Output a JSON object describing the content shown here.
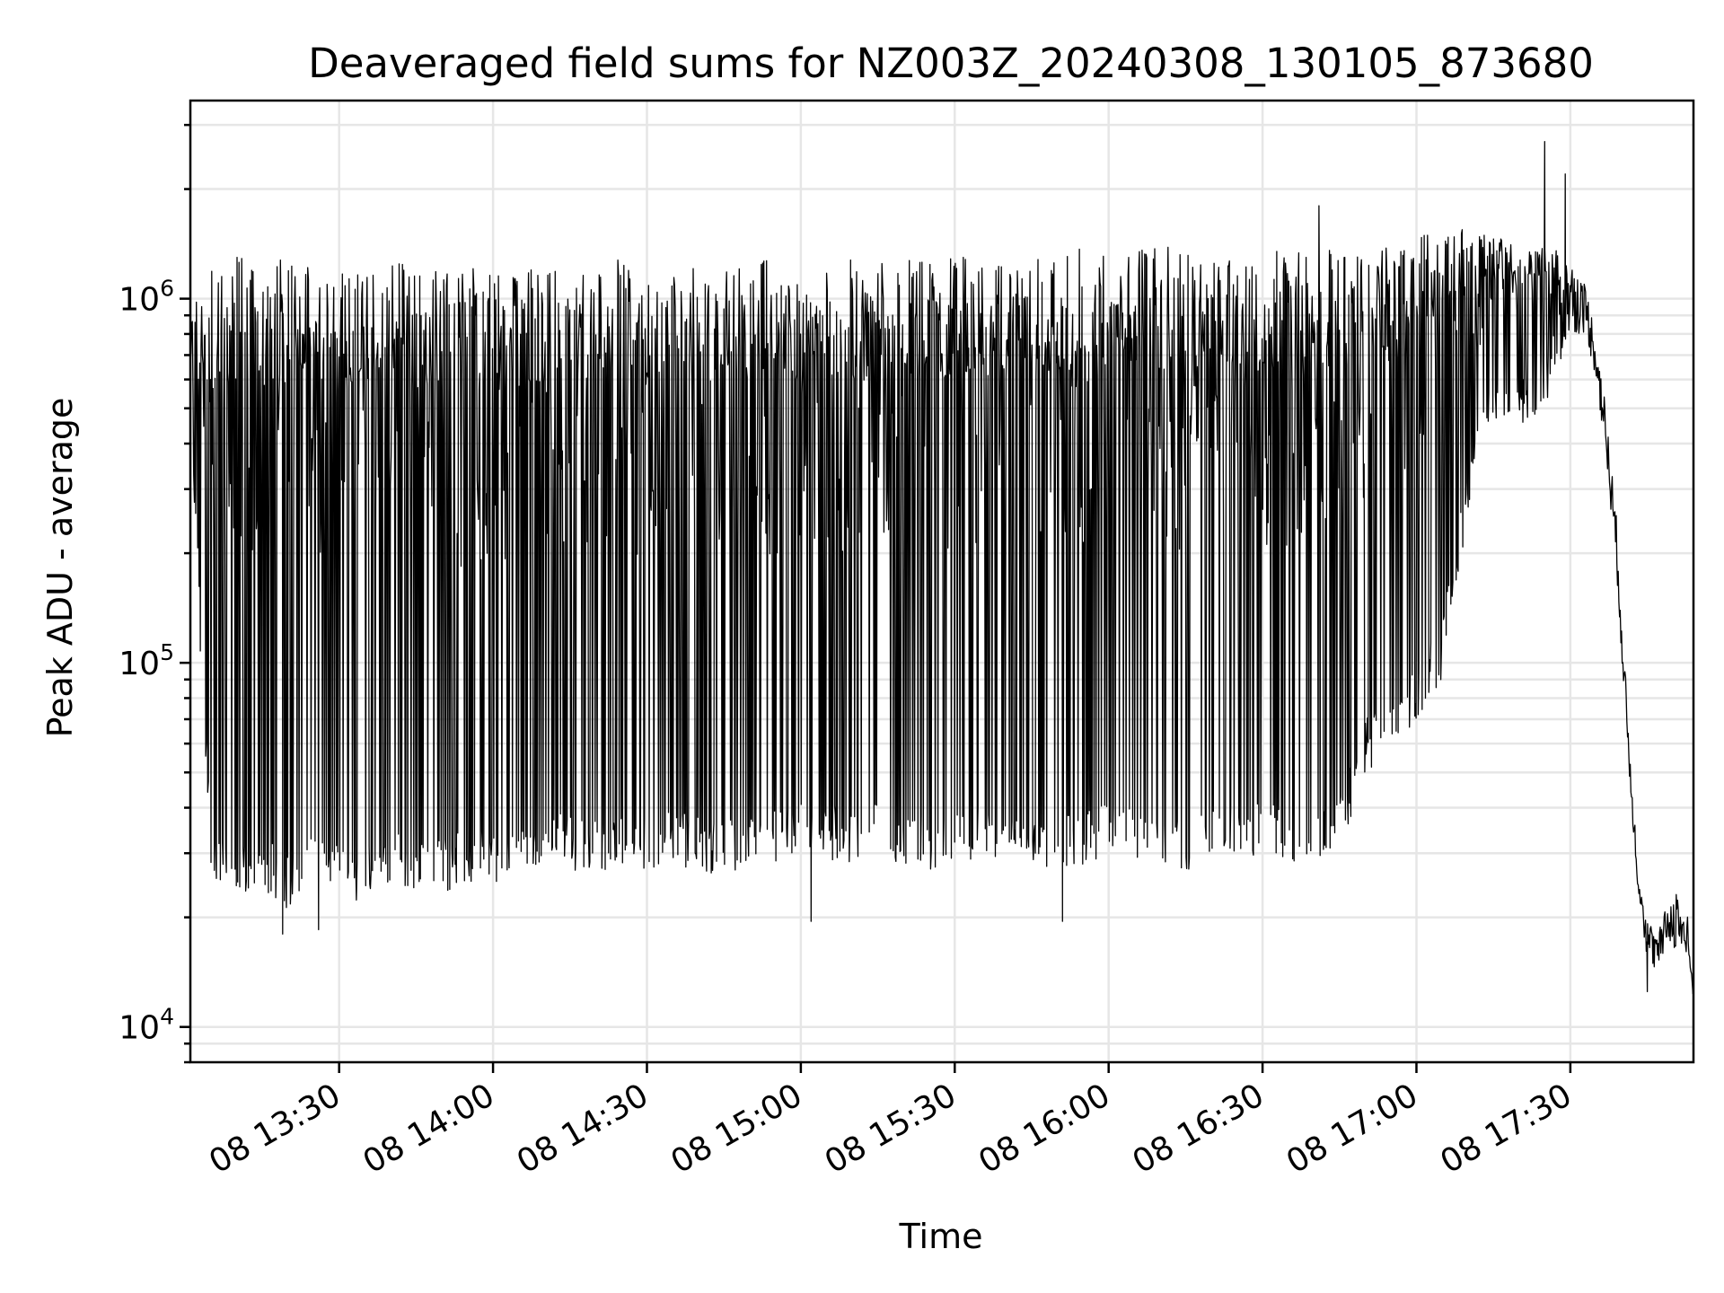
{
  "chart_data": {
    "type": "line",
    "title": "Deaveraged field sums for NZ003Z_20240308_130105_873680",
    "xlabel": "Time",
    "ylabel": "Peak ADU - average",
    "yscale": "log",
    "ylim": [
      8000,
      3500000
    ],
    "xlim": [
      "2024-03-08 13:01",
      "2024-03-08 17:54"
    ],
    "grid": true,
    "legend": "none",
    "line_color": "#000000",
    "x_ticks": [
      "08 13:30",
      "08 14:00",
      "08 14:30",
      "08 15:00",
      "08 15:30",
      "08 16:00",
      "08 16:30",
      "08 17:00",
      "08 17:30"
    ],
    "y_ticks": [
      {
        "base": "10",
        "exp": "4"
      },
      {
        "base": "10",
        "exp": "5"
      },
      {
        "base": "10",
        "exp": "6"
      }
    ],
    "series": [
      {
        "x": [
          "2024-03-08 13:01",
          "2024-03-08 13:05",
          "2024-03-08 13:10",
          "2024-03-08 13:15",
          "2024-03-08 13:20",
          "2024-03-08 13:25",
          "2024-03-08 13:30",
          "2024-03-08 13:35",
          "2024-03-08 13:40",
          "2024-03-08 13:45",
          "2024-03-08 13:50",
          "2024-03-08 13:55",
          "2024-03-08 14:00",
          "2024-03-08 14:05",
          "2024-03-08 14:10",
          "2024-03-08 14:15",
          "2024-03-08 14:20",
          "2024-03-08 14:25",
          "2024-03-08 14:30",
          "2024-03-08 14:35",
          "2024-03-08 14:40",
          "2024-03-08 14:45",
          "2024-03-08 14:50",
          "2024-03-08 14:55",
          "2024-03-08 15:00",
          "2024-03-08 15:05",
          "2024-03-08 15:10",
          "2024-03-08 15:15",
          "2024-03-08 15:20",
          "2024-03-08 15:25",
          "2024-03-08 15:30",
          "2024-03-08 15:35",
          "2024-03-08 15:40",
          "2024-03-08 15:45",
          "2024-03-08 15:50",
          "2024-03-08 15:55",
          "2024-03-08 16:00",
          "2024-03-08 16:05",
          "2024-03-08 16:10",
          "2024-03-08 16:15",
          "2024-03-08 16:20",
          "2024-03-08 16:25",
          "2024-03-08 16:30",
          "2024-03-08 16:35",
          "2024-03-08 16:40",
          "2024-03-08 16:45",
          "2024-03-08 16:50",
          "2024-03-08 16:55",
          "2024-03-08 17:00",
          "2024-03-08 17:05",
          "2024-03-08 17:10",
          "2024-03-08 17:15",
          "2024-03-08 17:20",
          "2024-03-08 17:25",
          "2024-03-08 17:30",
          "2024-03-08 17:33",
          "2024-03-08 17:35",
          "2024-03-08 17:37",
          "2024-03-08 17:39",
          "2024-03-08 17:41",
          "2024-03-08 17:43",
          "2024-03-08 17:45",
          "2024-03-08 17:47",
          "2024-03-08 17:49",
          "2024-03-08 17:51",
          "2024-03-08 17:53",
          "2024-03-08 17:54"
        ],
        "upper": [
          900000,
          1200000,
          1300000,
          1250000,
          1300000,
          1250000,
          1200000,
          1200000,
          1300000,
          1200000,
          1200000,
          1250000,
          1200000,
          1200000,
          1250000,
          1200000,
          1250000,
          1300000,
          1250000,
          1300000,
          1250000,
          1300000,
          1300000,
          1300000,
          1250000,
          1300000,
          1300000,
          1250000,
          1300000,
          1300000,
          1300000,
          1300000,
          1300000,
          1300000,
          1300000,
          1400000,
          1350000,
          1350000,
          1400000,
          1350000,
          1300000,
          1350000,
          1350000,
          1400000,
          1350000,
          1400000,
          1300000,
          1400000,
          1500000,
          1550000,
          1600000,
          1500000,
          1400000,
          1400000,
          1300000,
          1100000,
          800000,
          500000,
          250000,
          80000,
          30000,
          20000,
          18000,
          22000,
          25000,
          20000,
          12000
        ],
        "lower": [
          400000,
          25000,
          22000,
          24000,
          21000,
          26000,
          23000,
          22000,
          25000,
          24000,
          23000,
          25000,
          24000,
          26000,
          28000,
          27000,
          26000,
          28000,
          27000,
          28000,
          27000,
          26000,
          27000,
          28000,
          30000,
          29000,
          28000,
          29000,
          28000,
          27000,
          28000,
          29000,
          28000,
          28000,
          27000,
          28000,
          29000,
          28000,
          28000,
          27000,
          28000,
          29000,
          30000,
          28000,
          29000,
          30000,
          50000,
          55000,
          70000,
          90000,
          250000,
          450000,
          450000,
          500000,
          800000,
          800000,
          600000,
          350000,
          180000,
          60000,
          25000,
          15000,
          14000,
          17000,
          16000,
          14000,
          12000
        ],
        "peaks_high": [
          {
            "x": "2024-03-08 16:41",
            "y": 1800000
          },
          {
            "x": "2024-03-08 17:25",
            "y": 2700000
          },
          {
            "x": "2024-03-08 17:29",
            "y": 2200000
          }
        ],
        "dips_low": [
          {
            "x": "2024-03-08 13:19",
            "y": 18000
          },
          {
            "x": "2024-03-08 13:26",
            "y": 18500
          },
          {
            "x": "2024-03-08 15:02",
            "y": 19500
          },
          {
            "x": "2024-03-08 15:51",
            "y": 19500
          },
          {
            "x": "2024-03-08 17:45",
            "y": 12500
          }
        ]
      }
    ]
  }
}
